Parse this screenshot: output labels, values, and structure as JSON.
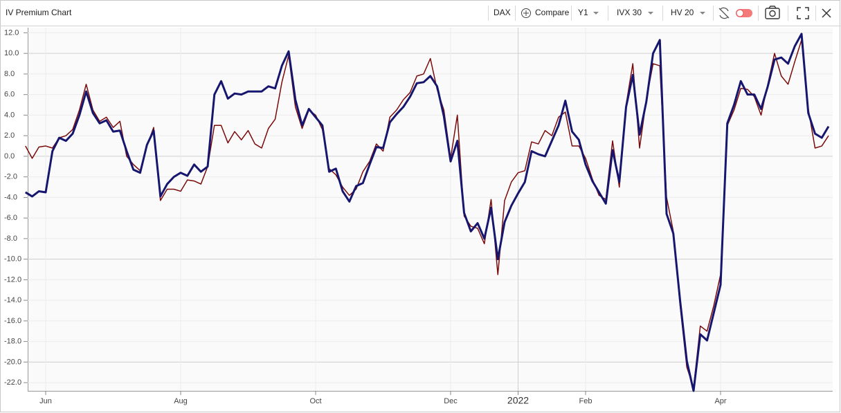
{
  "toolbar": {
    "symbol": "DAX",
    "compare": "Compare",
    "period": "Y1",
    "series_a": "IVX 30",
    "series_b": "HV 20"
  },
  "chart_data": {
    "type": "line",
    "title": "IV Premium Chart",
    "categories": [
      null,
      null,
      null,
      "Jun",
      null,
      null,
      null,
      null,
      null,
      null,
      null,
      null,
      null,
      null,
      null,
      null,
      null,
      null,
      null,
      null,
      null,
      null,
      null,
      "Aug",
      null,
      null,
      null,
      null,
      null,
      null,
      null,
      null,
      null,
      null,
      null,
      null,
      null,
      null,
      null,
      null,
      null,
      null,
      null,
      "Oct",
      null,
      null,
      null,
      null,
      null,
      null,
      null,
      null,
      null,
      null,
      null,
      null,
      null,
      null,
      null,
      null,
      null,
      null,
      null,
      "Dec",
      null,
      null,
      null,
      null,
      null,
      null,
      null,
      null,
      null,
      "2022",
      null,
      null,
      null,
      null,
      null,
      null,
      null,
      null,
      null,
      "Feb",
      null,
      null,
      null,
      null,
      null,
      null,
      null,
      null,
      null,
      null,
      null,
      null,
      null,
      null,
      null,
      null,
      null,
      null,
      null,
      "Apr",
      null,
      null,
      null,
      null,
      null,
      null,
      null,
      null,
      null,
      null,
      null,
      null,
      null,
      null,
      null,
      null
    ],
    "series": [
      {
        "color": "#16166e",
        "values": [
          -3.5,
          -3.9,
          -3.4,
          -3.5,
          0.5,
          1.8,
          1.5,
          2.2,
          4.0,
          6.3,
          4.2,
          3.2,
          3.5,
          2.4,
          2.5,
          0.5,
          -1.3,
          -1.6,
          1.1,
          2.5,
          -3.9,
          -2.7,
          -2.0,
          -1.6,
          -1.9,
          -0.8,
          -1.5,
          -1.0,
          6.0,
          7.3,
          5.6,
          6.1,
          6.0,
          6.3,
          6.3,
          6.3,
          6.8,
          6.6,
          8.8,
          10.2,
          5.5,
          3.0,
          4.6,
          3.8,
          3.0,
          -1.5,
          -1.2,
          -3.4,
          -4.4,
          -2.9,
          -2.6,
          -0.8,
          0.9,
          0.8,
          3.3,
          4.1,
          4.8,
          5.8,
          7.1,
          7.2,
          7.8,
          6.8,
          3.9,
          -0.5,
          1.5,
          -5.5,
          -7.3,
          -6.5,
          -8.0,
          -5.0,
          -10.0,
          -6.4,
          -4.8,
          -3.6,
          -2.5,
          0.5,
          0.2,
          0.0,
          1.5,
          3.0,
          5.4,
          2.4,
          1.6,
          -0.8,
          -2.4,
          -3.5,
          -4.6,
          0.6,
          -2.5,
          4.8,
          7.9,
          2.1,
          5.3,
          10.0,
          11.3,
          -5.6,
          -7.5,
          -14.0,
          -19.9,
          -22.8,
          -17.3,
          -17.9,
          -15.2,
          -12.5,
          3.2,
          5.0,
          7.3,
          6.0,
          6.0,
          4.6,
          6.8,
          9.4,
          9.6,
          9.0,
          10.7,
          11.9,
          4.2,
          2.2,
          1.8,
          2.9
        ]
      },
      {
        "color": "#7a0a0a",
        "values": [
          1.0,
          -0.2,
          0.9,
          1.0,
          0.8,
          1.8,
          2.0,
          2.6,
          4.5,
          7.0,
          4.5,
          3.4,
          3.8,
          2.8,
          3.4,
          0.0,
          -0.8,
          -1.4,
          1.0,
          2.8,
          -4.3,
          -3.2,
          -3.2,
          -3.4,
          -2.3,
          -2.4,
          -2.7,
          -1.0,
          3.0,
          3.0,
          1.3,
          2.4,
          1.6,
          2.5,
          1.2,
          0.8,
          2.7,
          3.6,
          7.2,
          9.8,
          4.8,
          2.7,
          4.5,
          4.0,
          2.6,
          -1.2,
          -1.8,
          -3.0,
          -3.8,
          -3.2,
          -1.5,
          -0.5,
          1.2,
          0.5,
          3.8,
          4.5,
          5.5,
          6.2,
          7.8,
          8.0,
          9.5,
          6.5,
          4.5,
          -0.2,
          4.0,
          -5.8,
          -6.8,
          -7.0,
          -8.5,
          -4.2,
          -11.5,
          -4.3,
          -2.5,
          -1.6,
          -1.4,
          1.4,
          1.2,
          2.5,
          2.0,
          3.8,
          4.3,
          1.0,
          1.0,
          -0.2,
          -2.2,
          -3.8,
          -4.2,
          1.5,
          -3.0,
          5.0,
          9.0,
          0.8,
          5.5,
          9.0,
          8.8,
          -4.0,
          -7.3,
          -14.5,
          -20.5,
          -22.5,
          -16.5,
          -17.0,
          -14.5,
          -11.5,
          3.0,
          4.5,
          6.6,
          6.5,
          5.8,
          4.0,
          7.0,
          10.0,
          7.8,
          7.0,
          9.2,
          11.3,
          4.6,
          0.8,
          1.0,
          2.0
        ]
      }
    ],
    "ylim": [
      -22.8,
      12.5
    ],
    "yticks": [
      {
        "value": 12,
        "label": "12.0"
      },
      {
        "value": 10,
        "label": "10.0"
      },
      {
        "value": 8,
        "label": "8.0"
      },
      {
        "value": 6,
        "label": "6.0"
      },
      {
        "value": 4,
        "label": "4.0"
      },
      {
        "value": 2,
        "label": "2.0"
      },
      {
        "value": 0,
        "label": "0.0"
      },
      {
        "value": -2,
        "label": "-2.0"
      },
      {
        "value": -4,
        "label": "-4.0"
      },
      {
        "value": -6,
        "label": "-6.0"
      },
      {
        "value": -8,
        "label": "-8.0"
      },
      {
        "value": -10,
        "label": "-10.0"
      },
      {
        "value": -12,
        "label": "-12.0"
      },
      {
        "value": -14,
        "label": "-14.0"
      },
      {
        "value": -16,
        "label": "-16.0"
      },
      {
        "value": -18,
        "label": "-18.0"
      },
      {
        "value": -20,
        "label": "-20.0"
      },
      {
        "value": -22,
        "label": "-22.0"
      }
    ],
    "grid": true
  }
}
